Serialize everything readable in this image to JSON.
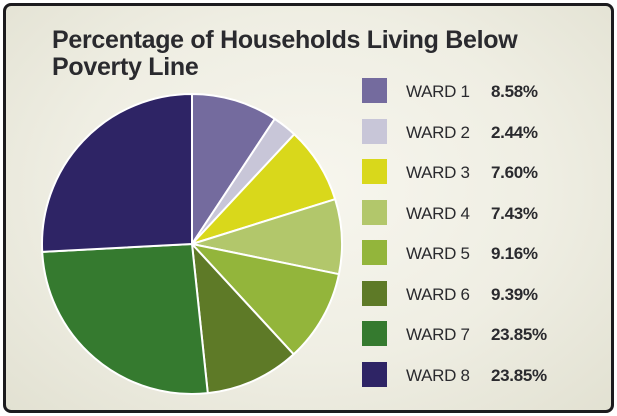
{
  "chart_data": {
    "type": "pie",
    "title": "Percentage of Households Living Below Poverty Line",
    "categories": [
      "WARD 1",
      "WARD 2",
      "WARD 3",
      "WARD 4",
      "WARD 5",
      "WARD 6",
      "WARD 7",
      "WARD 8"
    ],
    "values": [
      8.58,
      2.44,
      7.6,
      7.43,
      9.16,
      9.39,
      23.85,
      23.85
    ],
    "value_labels": [
      "8.58%",
      "2.44%",
      "7.60%",
      "7.43%",
      "9.16%",
      "9.39%",
      "23.85%",
      "23.85%"
    ],
    "colors": [
      "#746b9e",
      "#c8c6d8",
      "#d9d81b",
      "#b2c76b",
      "#93b53b",
      "#5e7a27",
      "#357a2f",
      "#2e2465"
    ],
    "start_position": "top (12 o'clock)",
    "direction": "clockwise",
    "legend_placement": "right"
  }
}
